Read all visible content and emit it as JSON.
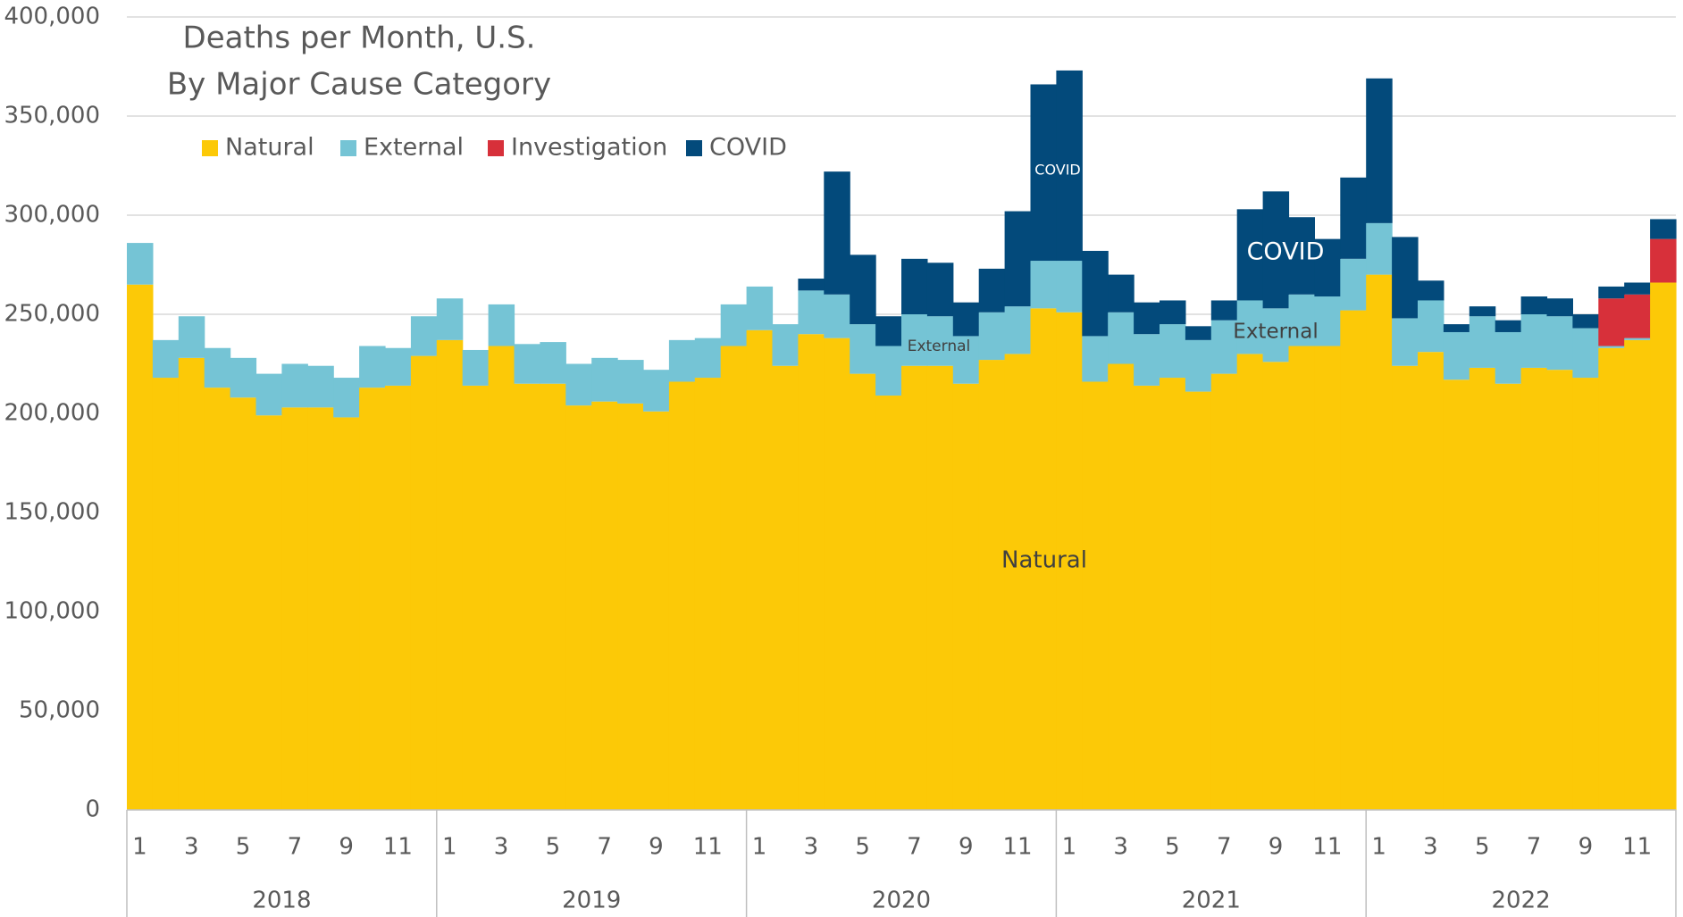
{
  "chart_data": {
    "type": "stacked-bar",
    "title": "Deaths per Month, U.S.",
    "subtitle": "By Major Cause Category",
    "categories": [
      1,
      null,
      3,
      null,
      5,
      null,
      7,
      null,
      9,
      null,
      11,
      null,
      1,
      null,
      3,
      null,
      5,
      null,
      7,
      null,
      9,
      null,
      11,
      null,
      1,
      null,
      3,
      null,
      5,
      null,
      7,
      null,
      9,
      null,
      11,
      null,
      1,
      null,
      3,
      null,
      5,
      null,
      7,
      null,
      9,
      null,
      11,
      null,
      1,
      null,
      3,
      null,
      5,
      null,
      7,
      null,
      9,
      null,
      11,
      null
    ],
    "years": [
      "2018",
      "2019",
      "2020",
      "2021",
      "2022"
    ],
    "series": [
      {
        "name": "Natural",
        "color": "#fcc907",
        "values": [
          265000,
          218000,
          228000,
          213000,
          208000,
          199000,
          203000,
          203000,
          198000,
          213000,
          214000,
          229000,
          237000,
          214000,
          234000,
          215000,
          215000,
          204000,
          206000,
          205000,
          201000,
          216000,
          218000,
          234000,
          242000,
          224000,
          240000,
          238000,
          220000,
          209000,
          224000,
          224000,
          215000,
          227000,
          230000,
          253000,
          251000,
          216000,
          225000,
          214000,
          218000,
          211000,
          220000,
          230000,
          226000,
          234000,
          234000,
          252000,
          270000,
          224000,
          231000,
          217000,
          223000,
          215000,
          223000,
          222000,
          218000,
          233000,
          237000,
          266000
        ]
      },
      {
        "name": "External",
        "color": "#75c4d5",
        "values": [
          21000,
          19000,
          21000,
          20000,
          20000,
          21000,
          22000,
          21000,
          20000,
          21000,
          19000,
          20000,
          21000,
          18000,
          21000,
          20000,
          21000,
          21000,
          22000,
          22000,
          21000,
          21000,
          20000,
          21000,
          22000,
          21000,
          22000,
          22000,
          25000,
          25000,
          26000,
          25000,
          24000,
          24000,
          24000,
          24000,
          26000,
          23000,
          26000,
          26000,
          27000,
          26000,
          27000,
          27000,
          27000,
          26000,
          25000,
          26000,
          26000,
          24000,
          26000,
          24000,
          26000,
          26000,
          27000,
          27000,
          25000,
          1000,
          1000,
          0
        ]
      },
      {
        "name": "Investigation",
        "color": "#d7303a",
        "values": [
          0,
          0,
          0,
          0,
          0,
          0,
          0,
          0,
          0,
          0,
          0,
          0,
          0,
          0,
          0,
          0,
          0,
          0,
          0,
          0,
          0,
          0,
          0,
          0,
          0,
          0,
          0,
          0,
          0,
          0,
          0,
          0,
          0,
          0,
          0,
          0,
          0,
          0,
          0,
          0,
          0,
          0,
          0,
          0,
          0,
          0,
          0,
          0,
          0,
          0,
          0,
          0,
          0,
          0,
          0,
          0,
          0,
          24000,
          22000,
          22000
        ]
      },
      {
        "name": "COVID",
        "color": "#034a7b",
        "values": [
          0,
          0,
          0,
          0,
          0,
          0,
          0,
          0,
          0,
          0,
          0,
          0,
          0,
          0,
          0,
          0,
          0,
          0,
          0,
          0,
          0,
          0,
          0,
          0,
          0,
          0,
          6000,
          62000,
          35000,
          15000,
          28000,
          27000,
          17000,
          22000,
          48000,
          89000,
          96000,
          43000,
          19000,
          16000,
          12000,
          7000,
          10000,
          46000,
          59000,
          39000,
          29000,
          41000,
          73000,
          41000,
          10000,
          4000,
          5000,
          6000,
          9000,
          9000,
          7000,
          6000,
          6000,
          10000
        ]
      }
    ],
    "annotations": [
      "Natural",
      "External",
      "COVID",
      "COVID",
      "External"
    ],
    "ylim": [
      0,
      400000
    ],
    "yticks": [
      0,
      {
        "value": 50000,
        "label": "50,000"
      },
      {
        "value": 100000,
        "label": "100,000"
      },
      {
        "value": 150000,
        "label": "150,000"
      },
      {
        "value": 200000,
        "label": "200,000"
      },
      {
        "value": 250000,
        "label": "250,000"
      },
      {
        "value": 300000,
        "label": "300,000"
      },
      {
        "value": 350000,
        "label": "350,000"
      },
      {
        "value": 400000,
        "label": "400,000"
      }
    ],
    "grid": true
  }
}
